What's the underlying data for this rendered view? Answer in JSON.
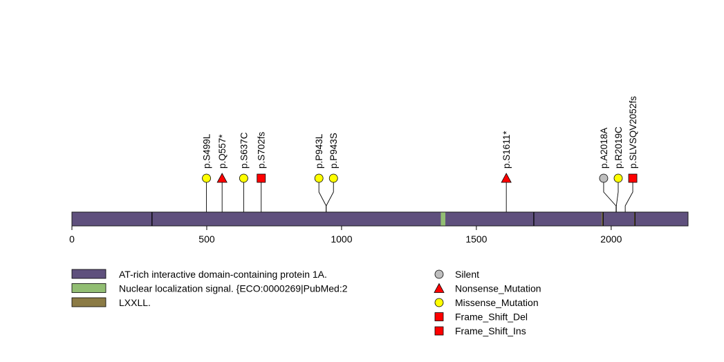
{
  "chart_data": {
    "type": "lollipop",
    "protein_length": 2285,
    "axis": {
      "range": [
        0,
        2285
      ],
      "ticks": [
        0,
        500,
        1000,
        1500,
        2000
      ],
      "tick_labels": [
        "0",
        "500",
        "1000",
        "1500",
        "2000"
      ]
    },
    "domains": [
      {
        "name": "AT-rich interactive domain-containing protein 1A.",
        "start": 1,
        "end": 2285,
        "color": "#5F507D"
      },
      {
        "name": "Nuclear localization signal.",
        "start": 1369,
        "end": 1385,
        "color": "#92BE73"
      },
      {
        "name": "LXXLL.",
        "start": 1966,
        "end": 1970,
        "color": "#8B7B45"
      },
      {
        "name": "LXXLL.",
        "start": 2086,
        "end": 2090,
        "color": "#8B7B45"
      }
    ],
    "segment_boundaries": [
      297,
      1713,
      1970,
      2088
    ],
    "mutations": [
      {
        "label": "p.S499L",
        "position": 499,
        "type": "Missense_Mutation",
        "display_pos": 499
      },
      {
        "label": "p.Q557*",
        "position": 557,
        "type": "Nonsense_Mutation",
        "display_pos": 557
      },
      {
        "label": "p.S637C",
        "position": 637,
        "type": "Missense_Mutation",
        "display_pos": 637
      },
      {
        "label": "p.S702fs",
        "position": 702,
        "type": "Frame_Shift_Del",
        "display_pos": 702
      },
      {
        "label": "p.P943L",
        "position": 943,
        "type": "Missense_Mutation",
        "display_pos": 916
      },
      {
        "label": "p.P943S",
        "position": 943,
        "type": "Missense_Mutation",
        "display_pos": 970
      },
      {
        "label": "p.S1611*",
        "position": 1611,
        "type": "Nonsense_Mutation",
        "display_pos": 1611
      },
      {
        "label": "p.A2018A",
        "position": 2018,
        "type": "Silent",
        "display_pos": 1972
      },
      {
        "label": "p.R2019C",
        "position": 2019,
        "type": "Missense_Mutation",
        "display_pos": 2026
      },
      {
        "label": "p.SLVSQV2052fs",
        "position": 2052,
        "type": "Frame_Shift_Del",
        "display_pos": 2080
      }
    ],
    "domain_legend": [
      {
        "label": "AT-rich interactive domain-containing protein 1A.",
        "color": "#5F507D"
      },
      {
        "label": "Nuclear localization signal. {ECO:0000269|PubMed:2",
        "color": "#92BE73"
      },
      {
        "label": "LXXLL.",
        "color": "#8B7B45"
      }
    ],
    "mutation_legend": [
      {
        "label": "Silent",
        "shape": "circle",
        "color": "#BEBEBE"
      },
      {
        "label": "Nonsense_Mutation",
        "shape": "triangle",
        "color": "#FF0000"
      },
      {
        "label": "Missense_Mutation",
        "shape": "circle",
        "color": "#FFFF00"
      },
      {
        "label": "Frame_Shift_Del",
        "shape": "square",
        "color": "#FF0000"
      },
      {
        "label": "Frame_Shift_Ins",
        "shape": "square",
        "color": "#FF0000"
      }
    ]
  }
}
